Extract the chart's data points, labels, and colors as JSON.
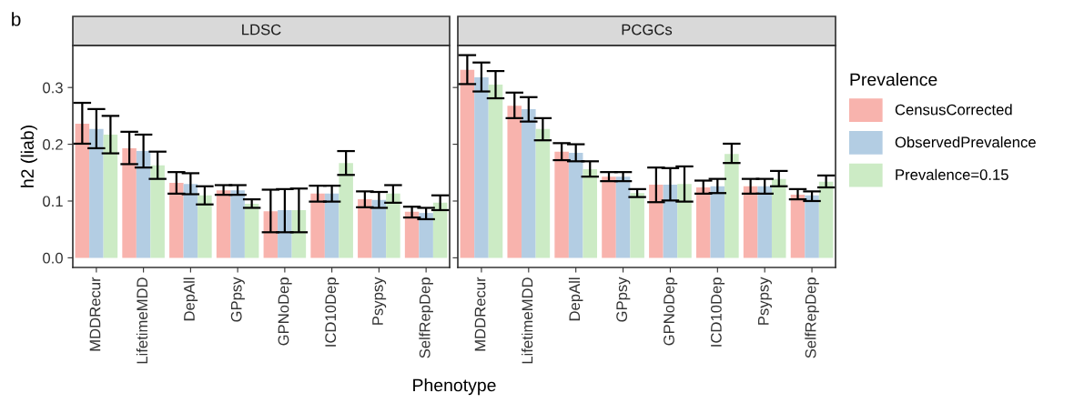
{
  "chart_data": [
    {
      "type": "bar",
      "title": "LDSC",
      "xlabel": "Phenotype",
      "ylabel": "h2 (liab)",
      "annotations": [
        "b"
      ],
      "categories": [
        "MDDRecur",
        "LifetimeMDD",
        "DepAll",
        "GPpsy",
        "GPNoDep",
        "ICD10Dep",
        "Psypsy",
        "SelfRepDep"
      ],
      "ylim": [
        -0.017,
        0.374
      ],
      "yticks": [
        {
          "value": 0,
          "label": "0.0"
        },
        0.1,
        0.2,
        0.3
      ],
      "grid": false,
      "legend": false,
      "series": [
        {
          "color": "#f8b3ad",
          "values": [
            0.236,
            0.193,
            0.132,
            0.119,
            0.082,
            0.113,
            0.103,
            0.081
          ],
          "errors": [
            [
              0.201,
              0.273
            ],
            [
              0.165,
              0.222
            ],
            [
              0.113,
              0.151
            ],
            [
              0.111,
              0.128
            ],
            [
              0.045,
              0.12
            ],
            [
              0.099,
              0.127
            ],
            [
              0.089,
              0.117
            ],
            [
              0.071,
              0.09
            ]
          ]
        },
        {
          "color": "#b3cde3",
          "values": [
            0.227,
            0.188,
            0.13,
            0.119,
            0.084,
            0.113,
            0.102,
            0.079
          ],
          "errors": [
            [
              0.193,
              0.262
            ],
            [
              0.159,
              0.217
            ],
            [
              0.112,
              0.149
            ],
            [
              0.111,
              0.128
            ],
            [
              0.045,
              0.121
            ],
            [
              0.099,
              0.127
            ],
            [
              0.088,
              0.116
            ],
            [
              0.068,
              0.088
            ]
          ]
        },
        {
          "color": "#ccebc5",
          "values": [
            0.217,
            0.163,
            0.11,
            0.095,
            0.084,
            0.167,
            0.113,
            0.097
          ],
          "errors": [
            [
              0.184,
              0.25
            ],
            [
              0.139,
              0.187
            ],
            [
              0.094,
              0.126
            ],
            [
              0.088,
              0.103
            ],
            [
              0.045,
              0.122
            ],
            [
              0.146,
              0.188
            ],
            [
              0.097,
              0.128
            ],
            [
              0.084,
              0.11
            ]
          ]
        }
      ]
    },
    {
      "type": "bar",
      "title": "PCGCs",
      "legend_title": "Prevalence",
      "tick_labels": "x",
      "categories": [
        "MDDRecur",
        "LifetimeMDD",
        "DepAll",
        "GPpsy",
        "GPNoDep",
        "ICD10Dep",
        "Psypsy",
        "SelfRepDep"
      ],
      "ylim": [
        -0.017,
        0.374
      ],
      "yticks": [
        {
          "value": 0,
          "label": null
        },
        {
          "value": 0.1,
          "label": null
        },
        {
          "value": 0.2,
          "label": null
        },
        {
          "value": 0.3,
          "label": null
        }
      ],
      "grid": false,
      "legend": "right",
      "series": [
        {
          "name": "CensusCorrected",
          "color": "#f8b3ad",
          "values": [
            0.331,
            0.268,
            0.187,
            0.143,
            0.129,
            0.124,
            0.126,
            0.111
          ],
          "errors": [
            [
              0.306,
              0.357
            ],
            [
              0.246,
              0.291
            ],
            [
              0.172,
              0.202
            ],
            [
              0.135,
              0.151
            ],
            [
              0.098,
              0.159
            ],
            [
              0.113,
              0.136
            ],
            [
              0.113,
              0.139
            ],
            [
              0.103,
              0.121
            ]
          ]
        },
        {
          "name": "ObservedPrevalence",
          "color": "#b3cde3",
          "values": [
            0.318,
            0.262,
            0.185,
            0.143,
            0.129,
            0.126,
            0.126,
            0.11
          ],
          "errors": [
            [
              0.293,
              0.344
            ],
            [
              0.24,
              0.283
            ],
            [
              0.17,
              0.2
            ],
            [
              0.135,
              0.151
            ],
            [
              0.101,
              0.158
            ],
            [
              0.114,
              0.139
            ],
            [
              0.113,
              0.139
            ],
            [
              0.1,
              0.117
            ]
          ]
        },
        {
          "name": "Prevalence=0.15",
          "color": "#ccebc5",
          "values": [
            0.305,
            0.227,
            0.156,
            0.114,
            0.13,
            0.183,
            0.139,
            0.134
          ],
          "errors": [
            [
              0.281,
              0.329
            ],
            [
              0.207,
              0.246
            ],
            [
              0.143,
              0.17
            ],
            [
              0.107,
              0.121
            ],
            [
              0.099,
              0.161
            ],
            [
              0.167,
              0.201
            ],
            [
              0.126,
              0.153
            ],
            [
              0.124,
              0.145
            ]
          ]
        }
      ]
    }
  ]
}
